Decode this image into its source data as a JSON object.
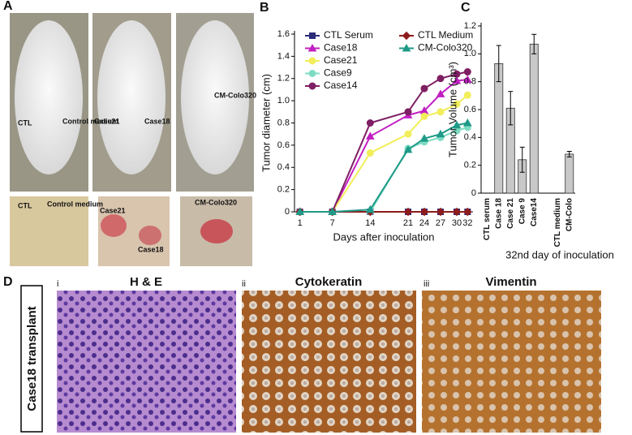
{
  "figure": {
    "panels": [
      "A",
      "B",
      "C",
      "D"
    ],
    "photo_labels": [
      "CTL",
      "Control medium",
      "Case21",
      "Case18",
      "CM-Colo320"
    ],
    "tumor_labels": [
      "CTL",
      "Control medium",
      "Case21",
      "Case18",
      "CM-Colo320"
    ],
    "stains": [
      {
        "index": "i",
        "title": "H & E"
      },
      {
        "index": "ii",
        "title": "Cytokeratin"
      },
      {
        "index": "iii",
        "title": "Vimentin"
      }
    ],
    "row_label": "Case18 transplant"
  },
  "chart_data": [
    {
      "type": "line",
      "xlabel": "Days after inoculation",
      "ylabel": "Tumor diameter (cm)",
      "x": [
        1,
        7,
        14,
        21,
        24,
        27,
        30,
        32
      ],
      "xlim": [
        0,
        33
      ],
      "xticks": [
        1,
        7,
        14,
        21,
        24,
        27,
        30,
        32
      ],
      "ylim": [
        0,
        1.6
      ],
      "yticks": [
        0,
        0.2,
        0.4,
        0.6,
        0.8,
        {
          "value": 1,
          "label": "1.0"
        },
        1.2,
        1.4,
        1.6
      ],
      "series": [
        {
          "name": "CTL Serum",
          "color": "#2b2b78",
          "marker": "square",
          "values": [
            0,
            0,
            0,
            0,
            0,
            0,
            0,
            0
          ]
        },
        {
          "name": "Case18",
          "color": "#c21fc2",
          "marker": "triangle",
          "values": [
            0,
            0,
            0.68,
            0.87,
            0.91,
            1.06,
            1.18,
            1.19
          ]
        },
        {
          "name": "Case21",
          "color": "#f2ee5a",
          "marker": "circle",
          "values": [
            0,
            0,
            0.53,
            0.7,
            0.86,
            0.9,
            0.97,
            1.05
          ]
        },
        {
          "name": "Case9",
          "color": "#7fdcc4",
          "marker": "circle",
          "values": [
            0,
            0,
            0,
            0.57,
            0.63,
            0.67,
            0.73,
            0.76
          ]
        },
        {
          "name": "Case14",
          "color": "#7e1f63",
          "marker": "circle",
          "values": [
            0,
            0,
            0.8,
            0.9,
            1.11,
            1.2,
            1.24,
            1.26
          ]
        },
        {
          "name": "CTL Medium",
          "color": "#8e1c1c",
          "marker": "diamond",
          "values": [
            0,
            0,
            0,
            0,
            0,
            0,
            0,
            0
          ]
        },
        {
          "name": "CM-Colo320",
          "color": "#1f9a88",
          "marker": "triangle",
          "values": [
            0,
            0,
            0.02,
            0.56,
            0.66,
            0.7,
            0.78,
            0.8
          ]
        }
      ]
    },
    {
      "type": "bar",
      "ylabel": "Tumor Volume (cm³)",
      "xlabel": "32nd day of inoculation",
      "categories": [
        "CTL serum",
        "Case 18",
        "Case 21",
        "Case 9",
        "Case14",
        null,
        "CTL medium",
        "CM-Colo"
      ],
      "values": [
        0,
        0.93,
        0.61,
        0.24,
        1.07,
        null,
        0,
        0.28
      ],
      "errors": [
        null,
        0.13,
        0.12,
        0.09,
        0.07,
        null,
        null,
        0.02
      ],
      "color": "#c8c8c8",
      "ylim": [
        0,
        1.2
      ],
      "yticks": [
        0,
        0.2,
        0.4,
        0.6,
        0.8,
        {
          "value": 1,
          "label": "1.0"
        },
        1.2
      ]
    }
  ]
}
